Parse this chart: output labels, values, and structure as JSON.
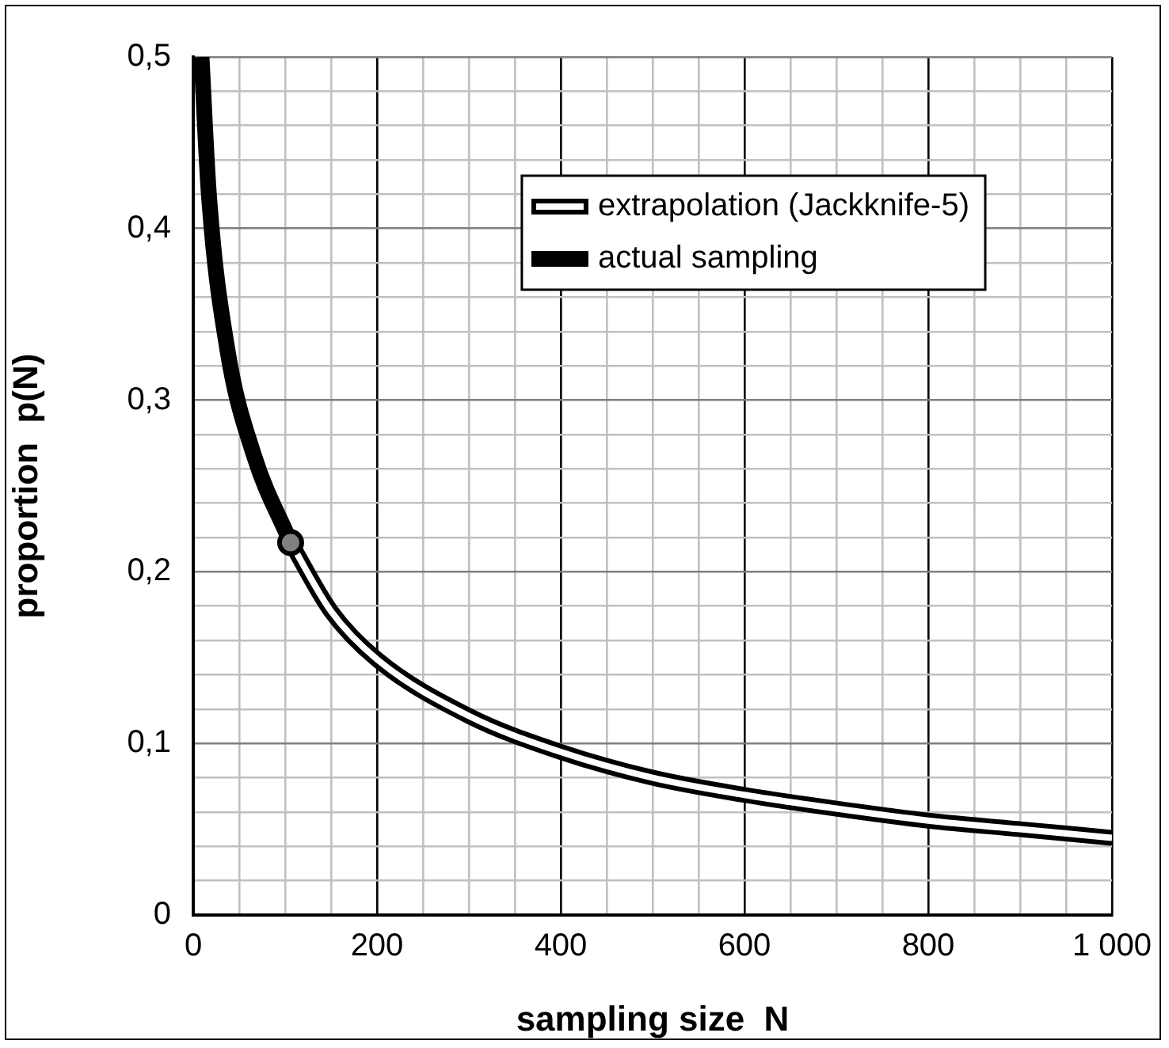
{
  "chart_data": {
    "type": "line",
    "xlabel": "sampling size  N",
    "ylabel": "proportion  p(N)",
    "series": [
      {
        "name": "extrapolation (Jackknife-5)",
        "color": "#000000",
        "x": [
          106,
          150,
          200,
          300,
          400,
          500,
          600,
          700,
          800,
          900,
          1000
        ],
        "values": [
          0.217,
          0.177,
          0.149,
          0.116,
          0.095,
          0.08,
          0.07,
          0.062,
          0.055,
          0.05,
          0.045
        ]
      },
      {
        "name": "actual sampling",
        "color": "#000000",
        "x": [
          9,
          17,
          37,
          66,
          106
        ],
        "values": [
          0.5,
          0.42,
          0.33,
          0.268,
          0.217
        ]
      },
      {
        "type": "scatter",
        "marker": "circle",
        "color": "#808080",
        "x": [
          106
        ],
        "values": [
          0.217
        ]
      }
    ],
    "xlim": [
      0,
      1000
    ],
    "ylim": [
      0,
      0.5
    ],
    "xticks": [
      0,
      {
        "value": 50,
        "label": null
      },
      {
        "value": 100,
        "label": null
      },
      {
        "value": 150,
        "label": null
      },
      200,
      {
        "value": 250,
        "label": null
      },
      {
        "value": 300,
        "label": null
      },
      {
        "value": 350,
        "label": null
      },
      400,
      {
        "value": 450,
        "label": null
      },
      {
        "value": 500,
        "label": null
      },
      {
        "value": 550,
        "label": null
      },
      600,
      {
        "value": 650,
        "label": null
      },
      {
        "value": 700,
        "label": null
      },
      {
        "value": 750,
        "label": null
      },
      800,
      {
        "value": 850,
        "label": null
      },
      {
        "value": 900,
        "label": null
      },
      {
        "value": 950,
        "label": null
      },
      {
        "value": 1000,
        "label": "1 000"
      }
    ],
    "yticks": [
      0,
      {
        "value": 0.02,
        "label": null
      },
      {
        "value": 0.04,
        "label": null
      },
      {
        "value": 0.06,
        "label": null
      },
      {
        "value": 0.08,
        "label": null
      },
      {
        "value": 0.1,
        "label": "0,1"
      },
      {
        "value": 0.12,
        "label": null
      },
      {
        "value": 0.14,
        "label": null
      },
      {
        "value": 0.16,
        "label": null
      },
      {
        "value": 0.18,
        "label": null
      },
      {
        "value": 0.2,
        "label": "0,2"
      },
      {
        "value": 0.22,
        "label": null
      },
      {
        "value": 0.24,
        "label": null
      },
      {
        "value": 0.26,
        "label": null
      },
      {
        "value": 0.28,
        "label": null
      },
      {
        "value": 0.3,
        "label": "0,3"
      },
      {
        "value": 0.32,
        "label": null
      },
      {
        "value": 0.34,
        "label": null
      },
      {
        "value": 0.36,
        "label": null
      },
      {
        "value": 0.38,
        "label": null
      },
      {
        "value": 0.4,
        "label": "0,4"
      },
      {
        "value": 0.42,
        "label": null
      },
      {
        "value": 0.44,
        "label": null
      },
      {
        "value": 0.46,
        "label": null
      },
      {
        "value": 0.48,
        "label": null
      },
      {
        "value": 0.5,
        "label": "0,5"
      }
    ],
    "grid": true,
    "legend": "top right",
    "line_style": "solid"
  }
}
